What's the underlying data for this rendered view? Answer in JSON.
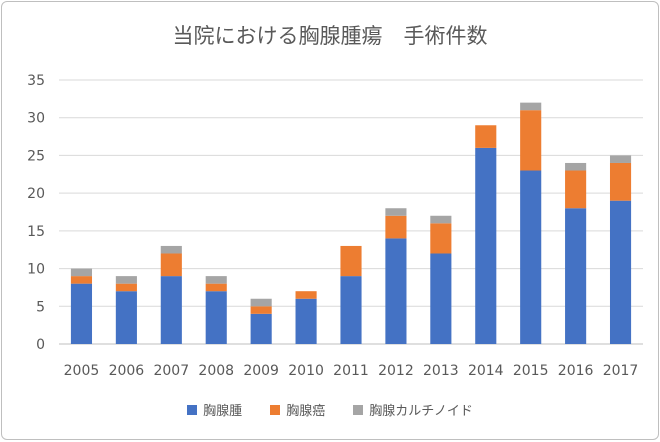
{
  "chart_data": {
    "type": "bar",
    "stacked": true,
    "title": "当院における胸腺腫瘍　手術件数",
    "categories": [
      "2005",
      "2006",
      "2007",
      "2008",
      "2009",
      "2010",
      "2011",
      "2012",
      "2013",
      "2014",
      "2015",
      "2016",
      "2017"
    ],
    "series": [
      {
        "name": "胸腺腫",
        "color": "#4472c4",
        "values": [
          8,
          7,
          9,
          7,
          4,
          6,
          9,
          14,
          12,
          26,
          23,
          18,
          19
        ]
      },
      {
        "name": "胸腺癌",
        "color": "#ed7d31",
        "values": [
          1,
          1,
          3,
          1,
          1,
          1,
          4,
          3,
          4,
          3,
          8,
          5,
          5
        ]
      },
      {
        "name": "胸腺カルチノイド",
        "color": "#a5a5a5",
        "values": [
          1,
          1,
          1,
          1,
          1,
          0,
          0,
          1,
          1,
          0,
          1,
          1,
          1
        ]
      }
    ],
    "ylim": [
      0,
      35
    ],
    "yticks": [
      "0",
      "5",
      "10",
      "15",
      "20",
      "25",
      "30",
      "35"
    ],
    "grid": true,
    "legend_position": "bottom"
  }
}
